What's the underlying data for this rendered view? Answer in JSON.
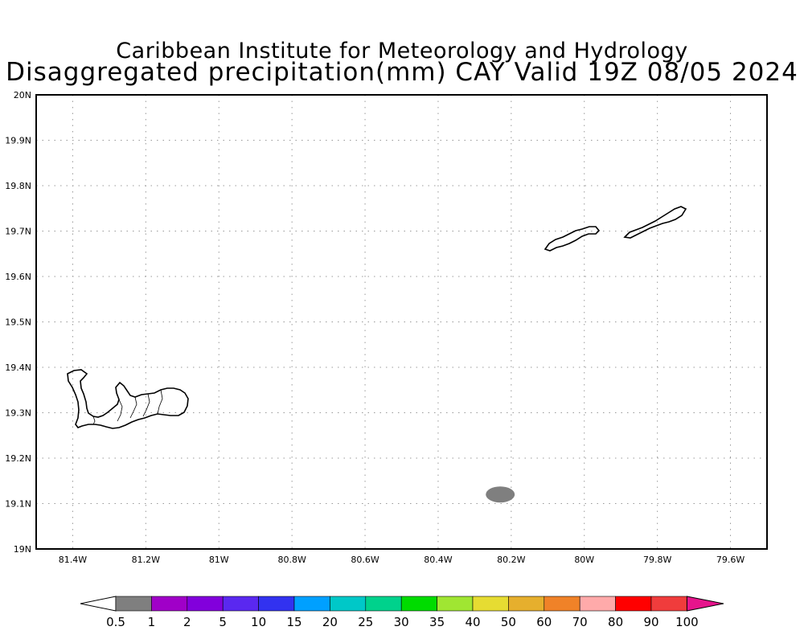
{
  "title": {
    "line1": "Caribbean Institute for Meteorology and Hydrology",
    "line2": "Disaggregated precipitation(mm) CAY Valid 19Z 08/05 2024"
  },
  "map": {
    "region": "Cayman Islands",
    "lon_range": [
      -81.5,
      -79.5
    ],
    "lat_range": [
      19.0,
      20.0
    ],
    "grid": "dotted",
    "lat_labels": [
      "19N",
      "19.1N",
      "19.2N",
      "19.3N",
      "19.4N",
      "19.5N",
      "19.6N",
      "19.7N",
      "19.8N",
      "19.9N",
      "20N"
    ],
    "lon_labels": [
      "81.4W",
      "81.2W",
      "81W",
      "80.8W",
      "80.6W",
      "80.4W",
      "80.2W",
      "80W",
      "79.8W",
      "79.6W"
    ],
    "islands": [
      "Grand Cayman",
      "Little Cayman",
      "Cayman Brac"
    ],
    "precip_cells": [
      {
        "lon": -80.23,
        "lat": 19.12,
        "category": "0.5-1",
        "color": "#7f7f7f"
      }
    ]
  },
  "colorbar": {
    "labels": [
      "0.5",
      "1",
      "2",
      "5",
      "10",
      "15",
      "20",
      "25",
      "30",
      "35",
      "40",
      "50",
      "60",
      "70",
      "80",
      "90",
      "100"
    ],
    "colors": [
      "#ffffff",
      "#7f7f7f",
      "#a000c8",
      "#8200dc",
      "#5a28f0",
      "#3232f0",
      "#00a0ff",
      "#00c8c8",
      "#00d28c",
      "#00dc00",
      "#a0e632",
      "#e6dc32",
      "#e6af2d",
      "#f08228",
      "#ffaaaa",
      "#ff0000",
      "#f03c3c",
      "#e6148c"
    ]
  }
}
